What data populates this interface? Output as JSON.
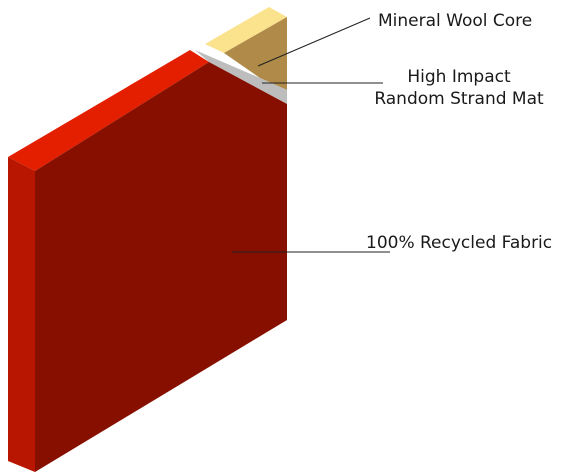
{
  "layers": [
    {
      "id": "core",
      "label": "Mineral Wool Core",
      "color": "#b08a48",
      "top_color": "#fae38c"
    },
    {
      "id": "mat",
      "label_lines": [
        "High Impact",
        "Random Strand Mat"
      ],
      "color": "#bdbdbd"
    },
    {
      "id": "fabric",
      "label": "100% Recycled Fabric",
      "face_color": "#860f00",
      "edge_color": "#b81600",
      "top_color": "#e31f00"
    }
  ]
}
